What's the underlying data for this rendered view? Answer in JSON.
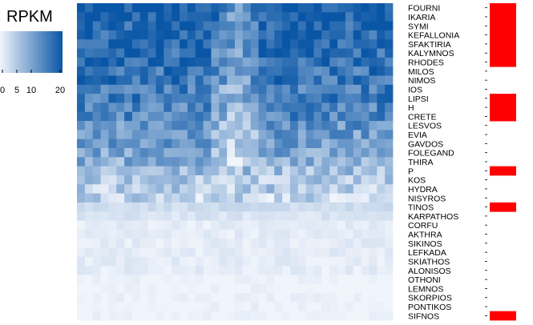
{
  "chart_data": {
    "type": "heatmap",
    "title": "",
    "legend": {
      "title": "RPKM",
      "ticks": [
        0,
        5,
        10,
        20
      ],
      "range": [
        0,
        20
      ],
      "color_low": "#f0f4fb",
      "color_high": "#0a56a6"
    },
    "rows": [
      "FOURNI",
      "IKARIA",
      "SYMI",
      "KEFALLONIA",
      "SFAKTIRIA",
      "KALYMNOS",
      "RHODES",
      "MILOS",
      "NIMOS",
      "IOS",
      "LIPSI",
      "H",
      "CRETE",
      "LESVOS",
      "EVIA",
      "GAVDOS",
      "FOLEGAND",
      "THIRA",
      "P",
      "KOS",
      "HYDRA",
      "NISYROS",
      "TINOS",
      "KARPATHOS",
      "CORFU",
      "AKTHRA",
      "SIKINOS",
      "LEFKADA",
      "SKIATHOS",
      "ALONISOS",
      "OTHONI",
      "LEMNOS",
      "SKORPIOS",
      "PONTIKOS",
      "SIFNOS"
    ],
    "row_labels_display": [
      "FOURNI",
      "IKARIA",
      "SYMI",
      "KEFALLONIA",
      "SFAKTIRIA",
      "KALYMNOS",
      "RHODES",
      "MILOS",
      "NIMOS",
      "IOS",
      "LIPSI",
      "H",
      "CRETE",
      "LESVOS",
      "EVIA",
      "GAVDOS",
      "FOLEGAND",
      "THIRA",
      "P",
      "KOS",
      "HYDRA",
      "NISYROS",
      "TINOS",
      "KARPATHOS",
      "CORFU",
      "AKTHRA",
      "SIKINOS",
      "LEFKADA",
      "SKIATHOS",
      "ALONISOS",
      "OTHONI",
      "LEMNOS",
      "SKORPIOS",
      "PONTIKOS",
      "SIFNOS"
    ],
    "n_columns": 40,
    "row_intensity": [
      19,
      19,
      18,
      18,
      18,
      17,
      17,
      16,
      16,
      15,
      15,
      14,
      14,
      12,
      11,
      11,
      10,
      9,
      7,
      6,
      5,
      4,
      3,
      2,
      1,
      1,
      1,
      1,
      1,
      1,
      0,
      0,
      0,
      0,
      0
    ],
    "annotation": {
      "color": "#ff0000",
      "flags": [
        1,
        1,
        1,
        1,
        1,
        1,
        1,
        0,
        0,
        0,
        1,
        1,
        1,
        0,
        0,
        0,
        0,
        0,
        1,
        0,
        0,
        0,
        1,
        0,
        0,
        0,
        0,
        0,
        0,
        0,
        0,
        0,
        0,
        0,
        1
      ]
    }
  }
}
